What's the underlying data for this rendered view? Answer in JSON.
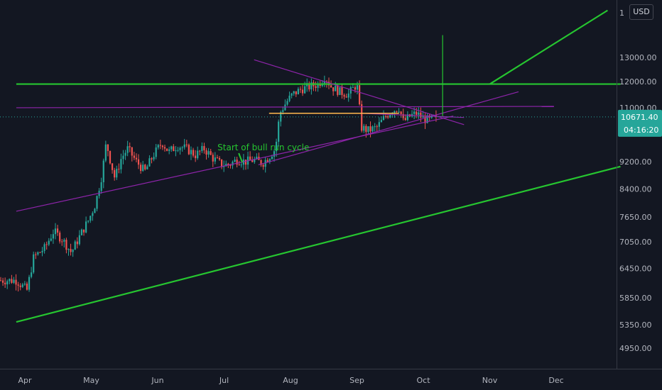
{
  "currency": "USD",
  "chart_data": {
    "type": "candlestick",
    "title": "",
    "x_labels": [
      "Apr",
      "May",
      "Jun",
      "Jul",
      "Aug",
      "Sep",
      "Oct",
      "Nov",
      "Dec"
    ],
    "y_scale": "log",
    "y_ticks": [
      4950.0,
      5350.0,
      5850.0,
      6450.0,
      7050.0,
      7650.0,
      8400.0,
      9200.0,
      11000.0,
      12000.0,
      13000.0
    ],
    "y_tick_labels": [
      "4950.00",
      "5350.00",
      "5850.00",
      "6450.00",
      "7050.00",
      "7650.00",
      "8400.00",
      "9200.00",
      "11000.00",
      "12000.00",
      "13000.00"
    ],
    "top_partial_label": "1",
    "y_range": [
      4600,
      15200
    ],
    "current_price": {
      "value": 10671.4,
      "label": "10671.40"
    },
    "countdown": "04:16:20",
    "price_path": [
      [
        "Mar 28",
        6200
      ],
      [
        "Apr 2",
        6000
      ],
      [
        "Apr 5",
        6700
      ],
      [
        "Apr 10",
        6900
      ],
      [
        "Apr 14",
        7300
      ],
      [
        "Apr 18",
        7100
      ],
      [
        "Apr 22",
        6800
      ],
      [
        "Apr 26",
        7200
      ],
      [
        "Apr 30",
        7600
      ],
      [
        "May 3",
        8000
      ],
      [
        "May 6",
        8800
      ],
      [
        "May 8",
        9800
      ],
      [
        "May 10",
        9200
      ],
      [
        "May 12",
        8700
      ],
      [
        "May 15",
        9300
      ],
      [
        "May 18",
        9600
      ],
      [
        "May 22",
        9200
      ],
      [
        "May 26",
        8900
      ],
      [
        "May 30",
        9400
      ],
      [
        "Jun 3",
        9800
      ],
      [
        "Jun 6",
        9500
      ],
      [
        "Jun 10",
        9700
      ],
      [
        "Jun 14",
        9600
      ],
      [
        "Jun 18",
        9400
      ],
      [
        "Jun 22",
        9600
      ],
      [
        "Jun 26",
        9300
      ],
      [
        "Jun 30",
        9100
      ],
      [
        "Jul 3",
        9100
      ],
      [
        "Jul 7",
        9250
      ],
      [
        "Jul 11",
        9200
      ],
      [
        "Jul 15",
        9250
      ],
      [
        "Jul 19",
        9150
      ],
      [
        "Jul 22",
        9350
      ],
      [
        "Jul 25",
        9600
      ],
      [
        "Jul 27",
        10800
      ],
      [
        "Jul 30",
        11200
      ],
      [
        "Aug 2",
        11500
      ],
      [
        "Aug 6",
        11700
      ],
      [
        "Aug 10",
        11800
      ],
      [
        "Aug 14",
        11900
      ],
      [
        "Aug 17",
        12200
      ],
      [
        "Aug 20",
        11800
      ],
      [
        "Aug 24",
        11600
      ],
      [
        "Aug 28",
        11500
      ],
      [
        "Sep 1",
        11900
      ],
      [
        "Sep 3",
        10300
      ],
      [
        "Sep 6",
        10200
      ],
      [
        "Sep 10",
        10300
      ],
      [
        "Sep 14",
        10700
      ],
      [
        "Sep 17",
        10900
      ],
      [
        "Sep 20",
        11000
      ],
      [
        "Sep 22",
        10500
      ],
      [
        "Sep 25",
        10700
      ],
      [
        "Sep 28",
        10800
      ],
      [
        "Oct 1",
        10600
      ],
      [
        "Oct 4",
        10550
      ],
      [
        "Oct 7",
        10671.4
      ]
    ],
    "annotations": [
      {
        "text": "Start of bull run cycle",
        "x": "Jun 28",
        "y": 9550,
        "color": "#26c630"
      }
    ],
    "trendlines": [
      {
        "color": "#26c630",
        "from": [
          "Mar 28",
          11900
        ],
        "to": [
          "Dec 31",
          11900
        ]
      },
      {
        "color": "#26c630",
        "from": [
          "Mar 28",
          5400
        ],
        "to": [
          "Dec 31",
          9050
        ]
      },
      {
        "color": "#26c630",
        "from": [
          "Nov 1",
          11900
        ],
        "to": [
          "Dec 25",
          15200
        ]
      },
      {
        "color": "#8e24aa",
        "from": [
          "Mar 28",
          7800
        ],
        "to": [
          "Oct 15",
          10700
        ]
      },
      {
        "color": "#8e24aa",
        "from": [
          "Mar 28",
          11000
        ],
        "to": [
          "Nov 30",
          11050
        ]
      },
      {
        "color": "#8e24aa",
        "from": [
          "Jul 17",
          9100
        ],
        "to": [
          "Nov 14",
          11600
        ]
      },
      {
        "color": "#8e24aa",
        "from": [
          "Jul 15",
          12900
        ],
        "to": [
          "Oct 20",
          10400
        ]
      },
      {
        "color": "#8e24aa",
        "from": [
          "Sep 2",
          10800
        ],
        "to": [
          "Oct 20",
          10650
        ]
      }
    ],
    "hlines": [
      {
        "color": "#ffb74d",
        "from": [
          "Jul 22",
          10800
        ],
        "to": [
          "Sep 20",
          10800
        ]
      }
    ],
    "vline": {
      "color": "#26c630",
      "x": "Oct 10",
      "from": 10700,
      "to": 14000
    }
  }
}
